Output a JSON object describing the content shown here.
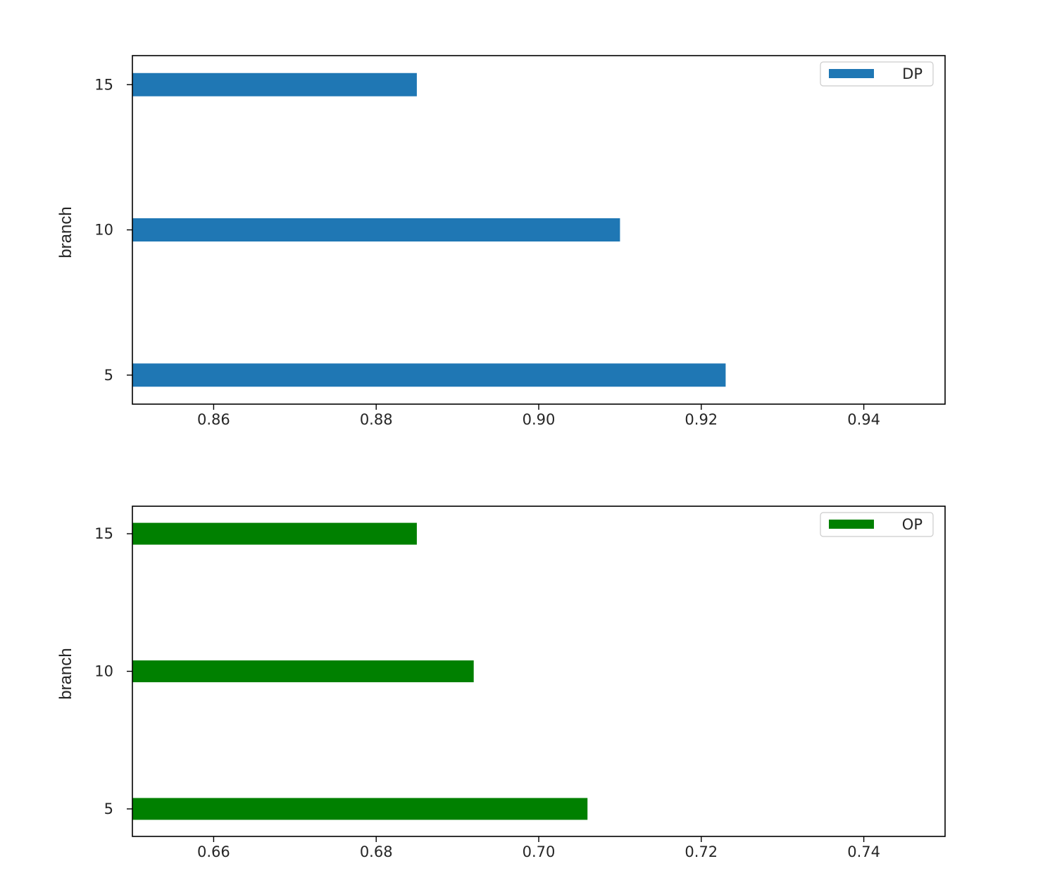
{
  "chart_data": [
    {
      "type": "bar",
      "orientation": "horizontal",
      "categories": [
        "5",
        "10",
        "15"
      ],
      "series": [
        {
          "name": "DP",
          "values": [
            0.923,
            0.91,
            0.885
          ],
          "color": "#1f77b4"
        }
      ],
      "xlabel": "",
      "ylabel": "branch",
      "xlim": [
        0.85,
        0.95
      ],
      "xticks": [
        "0.86",
        "0.88",
        "0.90",
        "0.92",
        "0.94"
      ],
      "yticks": [
        "5",
        "10",
        "15"
      ],
      "ylim": [
        4,
        16
      ],
      "legend": "top-right",
      "grid": false
    },
    {
      "type": "bar",
      "orientation": "horizontal",
      "categories": [
        "5",
        "10",
        "15"
      ],
      "series": [
        {
          "name": "OP",
          "values": [
            0.706,
            0.692,
            0.685
          ],
          "color": "#008000"
        }
      ],
      "xlabel": "",
      "ylabel": "branch",
      "xlim": [
        0.65,
        0.75
      ],
      "xticks": [
        "0.66",
        "0.68",
        "0.70",
        "0.72",
        "0.74"
      ],
      "yticks": [
        "5",
        "10",
        "15"
      ],
      "ylim": [
        4,
        16
      ],
      "legend": "top-right",
      "grid": false
    }
  ]
}
